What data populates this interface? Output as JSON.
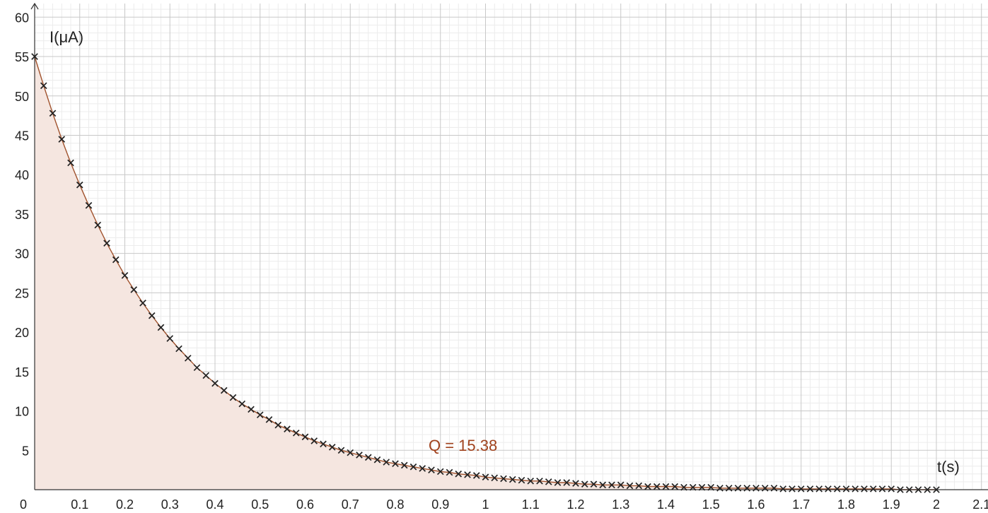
{
  "chart_data": {
    "type": "scatter",
    "xlabel": "t(s)",
    "ylabel": "I(μA)",
    "xlim": [
      0,
      2.18
    ],
    "ylim": [
      0,
      61
    ],
    "x_ticks": [
      0,
      0.1,
      0.2,
      0.3,
      0.4,
      0.5,
      0.6,
      0.7,
      0.8,
      0.9,
      1,
      1.1,
      1.2,
      1.3,
      1.4,
      1.5,
      1.6,
      1.7,
      1.8,
      1.9,
      2,
      2.1
    ],
    "y_ticks": [
      5,
      10,
      15,
      20,
      25,
      30,
      35,
      40,
      45,
      50,
      55,
      60
    ],
    "origin_label": "0",
    "grid": true,
    "annotation": "Q = 15.38",
    "colors": {
      "curve": "#a0522d",
      "fill": "#f5e6e0",
      "marker": "#222222",
      "annotation": "#a0421d",
      "major_grid": "#c8c8c8",
      "minor_grid": "#ececec"
    },
    "series": [
      {
        "marker": "x",
        "x": [
          0,
          0.02,
          0.04,
          0.06,
          0.08,
          0.1,
          0.12,
          0.14,
          0.16,
          0.18,
          0.2,
          0.22,
          0.24,
          0.26,
          0.28,
          0.3,
          0.32,
          0.34,
          0.36,
          0.38,
          0.4,
          0.42,
          0.44,
          0.46,
          0.48,
          0.5,
          0.52,
          0.54,
          0.56,
          0.58,
          0.6,
          0.62,
          0.64,
          0.66,
          0.68,
          0.7,
          0.72,
          0.74,
          0.76,
          0.78,
          0.8,
          0.82,
          0.84,
          0.86,
          0.88,
          0.9,
          0.92,
          0.94,
          0.96,
          0.98,
          1,
          1.02,
          1.04,
          1.06,
          1.08,
          1.1,
          1.12,
          1.14,
          1.16,
          1.18,
          1.2,
          1.22,
          1.24,
          1.26,
          1.28,
          1.3,
          1.32,
          1.34,
          1.36,
          1.38,
          1.4,
          1.42,
          1.44,
          1.46,
          1.48,
          1.5,
          1.52,
          1.54,
          1.56,
          1.58,
          1.6,
          1.62,
          1.64,
          1.66,
          1.68,
          1.7,
          1.72,
          1.74,
          1.76,
          1.78,
          1.8,
          1.82,
          1.84,
          1.86,
          1.88,
          1.9,
          1.92,
          1.94,
          1.96,
          1.98,
          2
        ],
        "y": [
          55,
          51.3,
          47.8,
          44.5,
          41.5,
          38.7,
          36.1,
          33.6,
          31.3,
          29.2,
          27.2,
          25.4,
          23.7,
          22.1,
          20.6,
          19.2,
          17.9,
          16.7,
          15.5,
          14.5,
          13.5,
          12.6,
          11.7,
          10.9,
          10.2,
          9.5,
          8.9,
          8.2,
          7.7,
          7.2,
          6.7,
          6.2,
          5.8,
          5.4,
          5.0,
          4.7,
          4.4,
          4.1,
          3.8,
          3.5,
          3.3,
          3.1,
          2.9,
          2.7,
          2.5,
          2.3,
          2.2,
          2.0,
          1.9,
          1.8,
          1.6,
          1.5,
          1.4,
          1.3,
          1.2,
          1.1,
          1.1,
          1.0,
          0.9,
          0.9,
          0.8,
          0.7,
          0.7,
          0.6,
          0.6,
          0.6,
          0.5,
          0.5,
          0.4,
          0.4,
          0.4,
          0.4,
          0.3,
          0.3,
          0.3,
          0.3,
          0.2,
          0.2,
          0.2,
          0.2,
          0.2,
          0.2,
          0.2,
          0.1,
          0.1,
          0.1,
          0.1,
          0.1,
          0.1,
          0.1,
          0.1,
          0.1,
          0.1,
          0.1,
          0.1,
          0.1,
          0,
          0,
          0,
          0,
          0
        ]
      }
    ]
  }
}
